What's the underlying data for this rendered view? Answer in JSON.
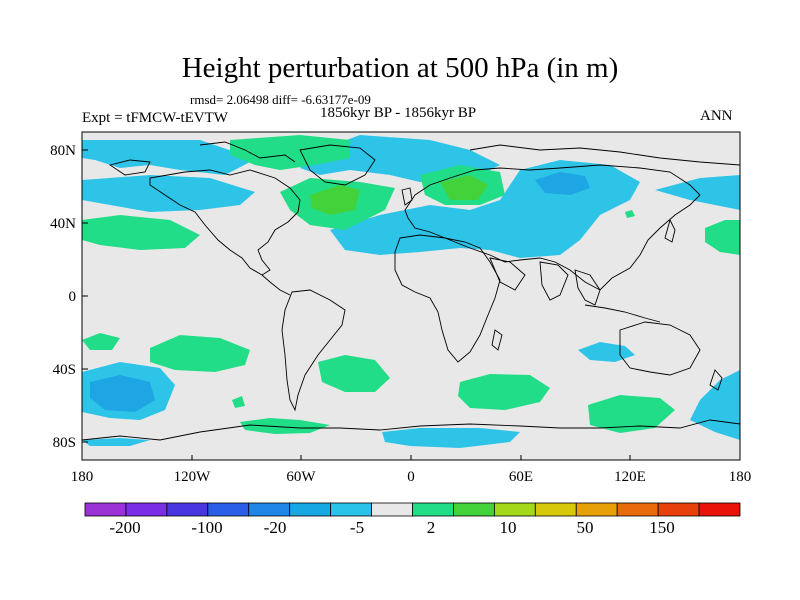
{
  "title": "Height perturbation at 500 hPa (in m)",
  "stats": "rmsd= 2.06498 diff= -6.63177e-09",
  "experiment": "Expt = tFMCW-tEVTW",
  "period": "1856kyr BP - 1856kyr BP",
  "season": "ANN",
  "lat_labels": [
    "80N",
    "40N",
    "0",
    "40S",
    "80S"
  ],
  "lon_labels": [
    "180",
    "120W",
    "60W",
    "0",
    "60E",
    "120E",
    "180"
  ],
  "colorbar": {
    "labels": [
      "-200",
      "-100",
      "-20",
      "-5",
      "2",
      "10",
      "50",
      "150"
    ],
    "colors": [
      "#9a32d6",
      "#7a2ee6",
      "#4a36e0",
      "#2a5ee8",
      "#1f86e8",
      "#15a8e2",
      "#29c2e8",
      "#e8e8e8",
      "#22dd88",
      "#44d23a",
      "#a4d81a",
      "#d8c80a",
      "#e8a008",
      "#e86a0a",
      "#e8400a",
      "#e8140a"
    ]
  },
  "map_colors": {
    "background": "#e8e8e8",
    "light_blue": "#2ec4e8",
    "mid_blue": "#1ea5e3",
    "light_green": "#22dd88",
    "green": "#44d23a"
  }
}
